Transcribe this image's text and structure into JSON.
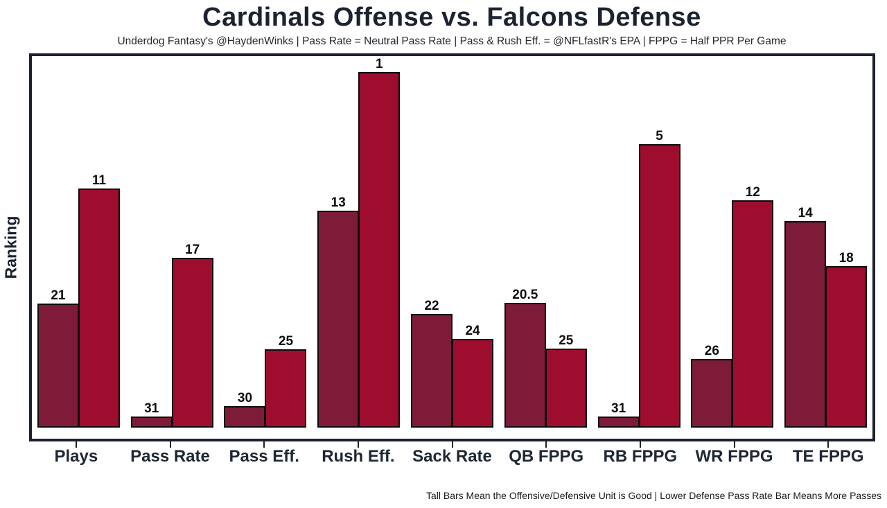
{
  "chart_data": {
    "type": "bar",
    "title": "Cardinals Offense vs. Falcons Defense",
    "subtitle": "Underdog Fantasy's @HaydenWinks | Pass Rate = Neutral Pass Rate | Pass & Rush Eff. = @NFLfastR's EPA | FPPG = Half PPR Per Game",
    "ylabel": "Ranking",
    "footnote": "Tall Bars Mean the Offensive/Defensive Unit is Good | Lower Defense Pass Rate Bar Means More Passes",
    "categories": [
      "Plays",
      "Pass Rate",
      "Pass Eff.",
      "Rush Eff.",
      "Sack Rate",
      "QB FPPG",
      "RB FPPG",
      "WR FPPG",
      "TE FPPG"
    ],
    "series": [
      {
        "name": "Cardinals Offense",
        "color": "#7e1b38",
        "rank_labels": [
          "21",
          "31",
          "30",
          "13",
          "22",
          "20.5",
          "31",
          "26",
          "14"
        ],
        "bar_height_pct": [
          34.9,
          3.1,
          6.0,
          61.0,
          32.0,
          35.1,
          3.1,
          19.3,
          58.1
        ]
      },
      {
        "name": "Falcons Defense",
        "color": "#9e0d2e",
        "rank_labels": [
          "11",
          "17",
          "25",
          "1",
          "24",
          "25",
          "5",
          "12",
          "18"
        ],
        "bar_height_pct": [
          67.3,
          47.8,
          22.0,
          100.0,
          25.0,
          22.2,
          79.7,
          63.9,
          45.4
        ]
      }
    ],
    "value_meaning": "labels are league rankings (1 = best); taller bar = better unit",
    "ylim": [
      0,
      32
    ],
    "grid": false,
    "legend_position": "none",
    "axis_color": "#1b212e",
    "bar_outline_color": "#0d0d0d"
  }
}
